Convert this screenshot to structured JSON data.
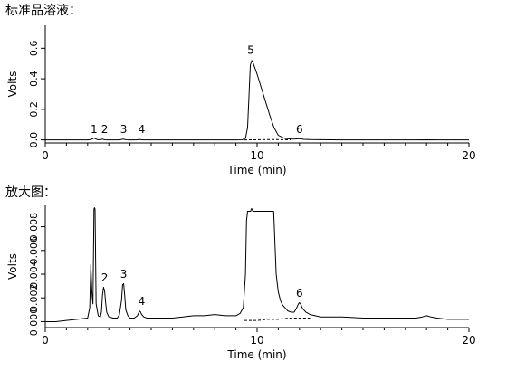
{
  "titles": {
    "top": "标准品溶液：",
    "bottom": "放大图："
  },
  "colors": {
    "trace": "#000000",
    "baseline": "#000000",
    "background": "#ffffff"
  },
  "chart_data": [
    {
      "type": "line",
      "title": "",
      "xlabel": "Time (min)",
      "ylabel": "Volts",
      "xlim": [
        0,
        20
      ],
      "ylim": [
        -0.02,
        0.75
      ],
      "xticks": [
        0,
        10,
        20
      ],
      "yticks": [
        0.0,
        0.2,
        0.4,
        0.6
      ],
      "ytick_labels": [
        "0.0",
        "0.2",
        "0.4",
        "0.6"
      ],
      "grid": false,
      "series": [
        {
          "style": "solid",
          "x": [
            0,
            2.0,
            2.15,
            2.3,
            2.45,
            2.6,
            2.7,
            2.8,
            2.9,
            3.0,
            3.5,
            3.6,
            3.7,
            3.8,
            4.0,
            4.3,
            4.45,
            4.6,
            4.75,
            5.0,
            7.0,
            9.0,
            9.3,
            9.45,
            9.55,
            9.62,
            9.68,
            9.75,
            9.82,
            9.9,
            10.0,
            10.2,
            10.4,
            10.6,
            10.8,
            11.0,
            11.3,
            11.6,
            11.8,
            12.0,
            12.2,
            12.5,
            14.0,
            17.5,
            18.0,
            18.5,
            20.0
          ],
          "y": [
            0,
            0,
            0.002,
            0.012,
            0.002,
            0.001,
            0.005,
            0.001,
            0.0,
            0.0,
            0.0,
            0.003,
            0.005,
            0.001,
            0.0,
            0.0,
            0.003,
            0.0,
            0.0,
            0.0,
            0.0,
            0.0,
            0.001,
            0.01,
            0.08,
            0.3,
            0.49,
            0.52,
            0.5,
            0.47,
            0.43,
            0.34,
            0.25,
            0.16,
            0.08,
            0.03,
            0.01,
            0.005,
            0.006,
            0.008,
            0.004,
            0.002,
            0.0,
            0.0,
            0.001,
            0.0,
            0.0
          ]
        },
        {
          "style": "dashed",
          "x": [
            9.4,
            10.0,
            10.5,
            11.0,
            11.4,
            11.6
          ],
          "y": [
            0.0,
            0.001,
            0.002,
            0.002,
            0.001,
            0.0
          ]
        }
      ],
      "annotations": [
        {
          "text": "1",
          "x": 2.3,
          "y": 0.02
        },
        {
          "text": "2",
          "x": 2.8,
          "y": 0.02
        },
        {
          "text": "3",
          "x": 3.7,
          "y": 0.02
        },
        {
          "text": "4",
          "x": 4.55,
          "y": 0.02
        },
        {
          "text": "5",
          "x": 9.7,
          "y": 0.54
        },
        {
          "text": "6",
          "x": 12.0,
          "y": 0.02
        }
      ]
    },
    {
      "type": "line",
      "title": "",
      "xlabel": "Time (min)",
      "ylabel": "Volts",
      "xlim": [
        0,
        20
      ],
      "ylim": [
        -0.0005,
        0.0098
      ],
      "xticks": [
        0,
        10,
        20
      ],
      "yticks": [
        0.0,
        0.002,
        0.004,
        0.006,
        0.008
      ],
      "ytick_labels": [
        "0.000",
        "0.002",
        "0.004",
        "0.006",
        "0.008"
      ],
      "grid": false,
      "series": [
        {
          "style": "solid",
          "x": [
            0,
            0.5,
            1.0,
            1.5,
            2.0,
            2.1,
            2.15,
            2.2,
            2.25,
            2.3,
            2.32,
            2.35,
            2.4,
            2.5,
            2.6,
            2.65,
            2.7,
            2.75,
            2.8,
            2.85,
            2.9,
            3.0,
            3.2,
            3.4,
            3.5,
            3.6,
            3.65,
            3.7,
            3.75,
            3.8,
            3.9,
            4.0,
            4.2,
            4.35,
            4.45,
            4.5,
            4.55,
            4.65,
            4.8,
            5.0,
            5.5,
            6.0,
            6.5,
            7.0,
            7.5,
            8.0,
            8.5,
            9.0,
            9.2,
            9.35,
            9.45,
            9.5,
            9.55,
            9.6,
            9.65,
            9.7,
            9.72,
            9.76,
            9.8,
            10.0,
            10.5,
            10.78,
            10.8,
            10.9,
            11.0,
            11.1,
            11.2,
            11.3,
            11.45,
            11.6,
            11.75,
            11.85,
            11.95,
            12.0,
            12.05,
            12.15,
            12.3,
            12.5,
            13.0,
            14.0,
            15.0,
            16.0,
            17.0,
            17.5,
            17.8,
            18.0,
            18.2,
            18.5,
            19.0,
            19.5,
            20.0
          ],
          "y": [
            0.0,
            0.0,
            0.0001,
            0.0002,
            0.0003,
            0.0012,
            0.0048,
            0.0025,
            0.0015,
            0.0095,
            0.0096,
            0.0095,
            0.0015,
            0.0005,
            0.0004,
            0.0008,
            0.0022,
            0.0029,
            0.0026,
            0.0016,
            0.0008,
            0.0004,
            0.0003,
            0.0003,
            0.0006,
            0.0018,
            0.0031,
            0.0032,
            0.0022,
            0.001,
            0.0005,
            0.0003,
            0.0003,
            0.0005,
            0.0009,
            0.0008,
            0.0006,
            0.0004,
            0.0003,
            0.0003,
            0.0003,
            0.0003,
            0.0004,
            0.0005,
            0.0005,
            0.0006,
            0.0005,
            0.0005,
            0.0007,
            0.0012,
            0.004,
            0.0085,
            0.0093,
            0.0093,
            0.0093,
            0.0093,
            0.0095,
            0.0095,
            0.0093,
            0.0093,
            0.0093,
            0.0093,
            0.0085,
            0.004,
            0.0025,
            0.0018,
            0.0014,
            0.0012,
            0.0009,
            0.0008,
            0.0008,
            0.0011,
            0.0015,
            0.0016,
            0.0015,
            0.0011,
            0.0008,
            0.0006,
            0.0004,
            0.0004,
            0.0003,
            0.0003,
            0.0003,
            0.0003,
            0.0004,
            0.0005,
            0.0004,
            0.0003,
            0.0002,
            0.0002,
            0.0002
          ]
        },
        {
          "style": "dashed",
          "x": [
            9.4,
            10.0,
            10.5,
            11.0,
            11.5,
            12.0,
            12.5
          ],
          "y": [
            0.0001,
            0.0001,
            0.0002,
            0.0002,
            0.0003,
            0.0003,
            0.0003
          ]
        }
      ],
      "annotations": [
        {
          "text": "2",
          "x": 2.8,
          "y": 0.0031
        },
        {
          "text": "3",
          "x": 3.7,
          "y": 0.0034
        },
        {
          "text": "4",
          "x": 4.55,
          "y": 0.0011
        },
        {
          "text": "6",
          "x": 12.0,
          "y": 0.0018
        }
      ]
    }
  ]
}
